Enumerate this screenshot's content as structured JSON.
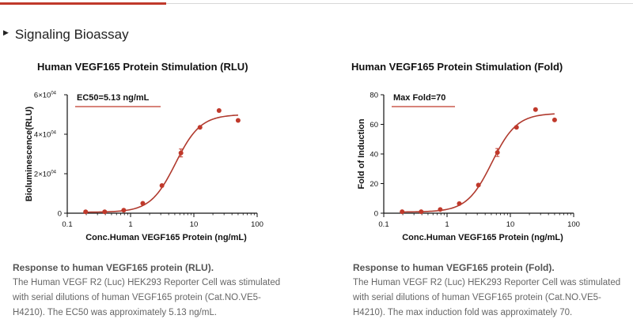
{
  "section": {
    "title": "Signaling Bioassay"
  },
  "colors": {
    "accent": "#c0392b",
    "curve": "#b03a2e",
    "point": "#c0392b"
  },
  "charts": [
    {
      "title": "Human VEGF165 Protein Stimulation (RLU)",
      "annotation": "EC50=5.13 ng/mL",
      "caption_title": "Response to human VEGF165 protein (RLU).",
      "caption_body": "The Human VEGF R2 (Luc) HEK293 Reporter Cell was stimulated with serial dilutions of human VEGF165 protein (Cat.NO.VE5-H4210). The EC50 was approximately 5.13 ng/mL."
    },
    {
      "title": "Human VEGF165 Protein Stimulation (Fold)",
      "annotation": "Max Fold=70",
      "caption_title": "Response to human VEGF165 protein (Fold).",
      "caption_body": "The Human VEGF R2 (Luc) HEK293 Reporter Cell was stimulated with serial dilutions of human VEGF165 protein (Cat.NO.VE5-H4210). The max induction fold was approximately 70."
    }
  ],
  "chart_data": [
    {
      "type": "scatter",
      "title": "Human VEGF165 Protein Stimulation (RLU)",
      "xlabel": "Conc.Human VEGF165 Protein (ng/mL)",
      "ylabel": "Bioluminescence(RLU)",
      "xscale": "log",
      "xlim": [
        0.1,
        100
      ],
      "ylim": [
        0,
        60000
      ],
      "x_ticks": [
        0.1,
        1,
        10,
        100
      ],
      "x_tick_labels": [
        "0.1",
        "1",
        "10",
        "100"
      ],
      "y_ticks": [
        0,
        20000,
        40000,
        60000
      ],
      "y_tick_mantissa": [
        "0",
        "2×10",
        "4×10",
        "6×10"
      ],
      "y_tick_exponent": [
        "",
        "04",
        "04",
        "04"
      ],
      "x": [
        0.195,
        0.39,
        0.78,
        1.56,
        3.13,
        6.25,
        12.5,
        25,
        50
      ],
      "y": [
        700,
        700,
        1500,
        5000,
        14000,
        30500,
        43500,
        52000,
        47000
      ],
      "fit": {
        "bottom": 500,
        "top": 50000,
        "ec50": 5.13,
        "hill": 2.2
      },
      "annotation": "EC50=5.13 ng/mL"
    },
    {
      "type": "scatter",
      "title": "Human VEGF165 Protein Stimulation (Fold)",
      "xlabel": "Conc.Human VEGF165 Protein (ng/mL)",
      "ylabel": "Fold of Induction",
      "xscale": "log",
      "xlim": [
        0.1,
        100
      ],
      "ylim": [
        0,
        80
      ],
      "x_ticks": [
        0.1,
        1,
        10,
        100
      ],
      "x_tick_labels": [
        "0.1",
        "1",
        "10",
        "100"
      ],
      "y_ticks": [
        0,
        20,
        40,
        60,
        80
      ],
      "y_tick_mantissa": [
        "0",
        "20",
        "40",
        "60",
        "80"
      ],
      "y_tick_exponent": [
        "",
        "",
        "",
        "",
        ""
      ],
      "x": [
        0.195,
        0.39,
        0.78,
        1.56,
        3.13,
        6.25,
        12.5,
        25,
        50
      ],
      "y": [
        1,
        1,
        2.5,
        6.5,
        19,
        41,
        58,
        70,
        63
      ],
      "fit": {
        "bottom": 0.8,
        "top": 67.5,
        "ec50": 5.1,
        "hill": 2.2
      },
      "annotation": "Max Fold=70"
    }
  ]
}
